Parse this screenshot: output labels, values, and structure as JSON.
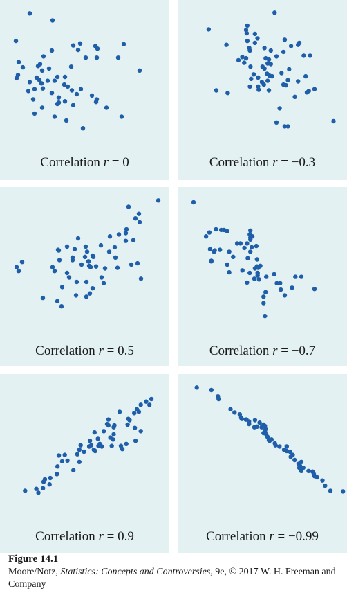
{
  "chart_data": [
    {
      "type": "scatter",
      "label_prefix": "Correlation",
      "label_var": "r",
      "label_value": "0",
      "xlim": [
        0,
        220
      ],
      "ylim": [
        0,
        205
      ],
      "points": [
        [
          21,
          10
        ],
        [
          54,
          21
        ],
        [
          1,
          53
        ],
        [
          5,
          86
        ],
        [
          4,
          106
        ],
        [
          2,
          111
        ],
        [
          53,
          68
        ],
        [
          21,
          117
        ],
        [
          91,
          67
        ],
        [
          84,
          60
        ],
        [
          94,
          57
        ],
        [
          119,
          65
        ],
        [
          116,
          61
        ],
        [
          102,
          79
        ],
        [
          41,
          77
        ],
        [
          36,
          89
        ],
        [
          33,
          92
        ],
        [
          39,
          99
        ],
        [
          49,
          96
        ],
        [
          47,
          115
        ],
        [
          35,
          114
        ],
        [
          38,
          119
        ],
        [
          40,
          127
        ],
        [
          57,
          115
        ],
        [
          61,
          109
        ],
        [
          72,
          109
        ],
        [
          71,
          121
        ],
        [
          76,
          124
        ],
        [
          82,
          130
        ],
        [
          89,
          136
        ],
        [
          95,
          128
        ],
        [
          111,
          138
        ],
        [
          84,
          153
        ],
        [
          72,
          147
        ],
        [
          63,
          141
        ],
        [
          53,
          134
        ],
        [
          61,
          151
        ],
        [
          28,
          128
        ],
        [
          26,
          144
        ],
        [
          19,
          131
        ],
        [
          39,
          157
        ],
        [
          28,
          166
        ],
        [
          63,
          149
        ],
        [
          57,
          171
        ],
        [
          74,
          177
        ],
        [
          118,
          144
        ],
        [
          118,
          79
        ],
        [
          149,
          79
        ],
        [
          157,
          58
        ],
        [
          180,
          99
        ],
        [
          117,
          148
        ],
        [
          98,
          189
        ],
        [
          154,
          171
        ],
        [
          11,
          94
        ],
        [
          31,
          110
        ],
        [
          132,
          157
        ],
        [
          81,
          93
        ]
      ]
    },
    {
      "type": "scatter",
      "label_prefix": "Correlation",
      "label_var": "r",
      "label_value": "−0.3",
      "xlim": [
        0,
        240
      ],
      "ylim": [
        0,
        205
      ],
      "points": [
        [
          25,
          35
        ],
        [
          129,
          9
        ],
        [
          53,
          59
        ],
        [
          86,
          29
        ],
        [
          84,
          36
        ],
        [
          85,
          41
        ],
        [
          98,
          42
        ],
        [
          86,
          53
        ],
        [
          98,
          56
        ],
        [
          102,
          49
        ],
        [
          89,
          64
        ],
        [
          90,
          68
        ],
        [
          84,
          80
        ],
        [
          78,
          78
        ],
        [
          81,
          87
        ],
        [
          72,
          83
        ],
        [
          91,
          93
        ],
        [
          96,
          105
        ],
        [
          110,
          93
        ],
        [
          113,
          96
        ],
        [
          118,
          88
        ],
        [
          115,
          80
        ],
        [
          120,
          82
        ],
        [
          123,
          89
        ],
        [
          117,
          104
        ],
        [
          123,
          68
        ],
        [
          113,
          64
        ],
        [
          132,
          77
        ],
        [
          145,
          51
        ],
        [
          155,
          61
        ],
        [
          166,
          59
        ],
        [
          168,
          56
        ],
        [
          175,
          76
        ],
        [
          152,
          97
        ],
        [
          140,
          103
        ],
        [
          125,
          108
        ],
        [
          118,
          115
        ],
        [
          109,
          117
        ],
        [
          112,
          121
        ],
        [
          92,
          112
        ],
        [
          90,
          124
        ],
        [
          104,
          129
        ],
        [
          120,
          130
        ],
        [
          143,
          121
        ],
        [
          147,
          122
        ],
        [
          150,
          114
        ],
        [
          166,
          116
        ],
        [
          178,
          108
        ],
        [
          180,
          133
        ],
        [
          183,
          131
        ],
        [
          161,
          140
        ],
        [
          137,
          158
        ],
        [
          185,
          76
        ],
        [
          192,
          128
        ],
        [
          37,
          130
        ],
        [
          55,
          134
        ],
        [
          103,
          110
        ],
        [
          121,
          107
        ],
        [
          132,
          180
        ],
        [
          145,
          186
        ],
        [
          150,
          186
        ],
        [
          222,
          178
        ],
        [
          103,
          124
        ],
        [
          143,
          70
        ]
      ]
    },
    {
      "type": "scatter",
      "label_prefix": "Correlation",
      "label_var": "r",
      "label_value": "0.5",
      "xlim": [
        0,
        220
      ],
      "ylim": [
        0,
        205
      ],
      "points": [
        [
          207,
          10
        ],
        [
          164,
          20
        ],
        [
          179,
          31
        ],
        [
          174,
          38
        ],
        [
          180,
          44
        ],
        [
          161,
          55
        ],
        [
          160,
          61
        ],
        [
          171,
          72
        ],
        [
          150,
          63
        ],
        [
          124,
          80
        ],
        [
          102,
          82
        ],
        [
          104,
          90
        ],
        [
          136,
          90
        ],
        [
          144,
          83
        ],
        [
          137,
          66
        ],
        [
          91,
          69
        ],
        [
          62,
          87
        ],
        [
          63,
          88
        ],
        [
          86,
          86
        ],
        [
          83,
          99
        ],
        [
          101,
          98
        ],
        [
          112,
          96
        ],
        [
          106,
          105
        ],
        [
          107,
          112
        ],
        [
          109,
          114
        ],
        [
          117,
          113
        ],
        [
          64,
          103
        ],
        [
          54,
          114
        ],
        [
          57,
          120
        ],
        [
          75,
          123
        ],
        [
          78,
          130
        ],
        [
          89,
          137
        ],
        [
          103,
          137
        ],
        [
          145,
          99
        ],
        [
          130,
          116
        ],
        [
          148,
          115
        ],
        [
          112,
          147
        ],
        [
          108,
          155
        ],
        [
          88,
          158
        ],
        [
          103,
          160
        ],
        [
          125,
          130
        ],
        [
          128,
          139
        ],
        [
          177,
          108
        ],
        [
          182,
          132
        ],
        [
          168,
          110
        ],
        [
          160,
          73
        ],
        [
          10,
          106
        ],
        [
          2,
          114
        ],
        [
          5,
          120
        ],
        [
          61,
          167
        ],
        [
          40,
          162
        ],
        [
          67,
          175
        ],
        [
          68,
          145
        ],
        [
          83,
          103
        ],
        [
          75,
          82
        ],
        [
          113,
          98
        ],
        [
          96,
          110
        ]
      ]
    },
    {
      "type": "scatter",
      "label_prefix": "Correlation",
      "label_var": "r",
      "label_value": "−0.7",
      "xlim": [
        0,
        230
      ],
      "ylim": [
        0,
        205
      ],
      "points": [
        [
          1,
          13
        ],
        [
          35,
          55
        ],
        [
          43,
          56
        ],
        [
          47,
          56
        ],
        [
          52,
          58
        ],
        [
          25,
          60
        ],
        [
          20,
          66
        ],
        [
          87,
          57
        ],
        [
          86,
          63
        ],
        [
          87,
          68
        ],
        [
          87,
          71
        ],
        [
          90,
          66
        ],
        [
          67,
          77
        ],
        [
          72,
          77
        ],
        [
          82,
          77
        ],
        [
          78,
          84
        ],
        [
          41,
          87
        ],
        [
          32,
          90
        ],
        [
          26,
          86
        ],
        [
          33,
          88
        ],
        [
          55,
          90
        ],
        [
          61,
          98
        ],
        [
          89,
          83
        ],
        [
          96,
          81
        ],
        [
          87,
          90
        ],
        [
          83,
          100
        ],
        [
          97,
          102
        ],
        [
          28,
          104
        ],
        [
          28,
          105
        ],
        [
          52,
          110
        ],
        [
          55,
          122
        ],
        [
          94,
          116
        ],
        [
          99,
          115
        ],
        [
          102,
          112
        ],
        [
          98,
          127
        ],
        [
          86,
          123
        ],
        [
          93,
          132
        ],
        [
          82,
          138
        ],
        [
          100,
          133
        ],
        [
          111,
          129
        ],
        [
          123,
          125
        ],
        [
          127,
          139
        ],
        [
          132,
          139
        ],
        [
          107,
          160
        ],
        [
          107,
          170
        ],
        [
          110,
          153
        ],
        [
          133,
          149
        ],
        [
          150,
          146
        ],
        [
          155,
          129
        ],
        [
          164,
          129
        ],
        [
          139,
          158
        ],
        [
          98,
          123
        ],
        [
          184,
          148
        ],
        [
          109,
          190
        ],
        [
          75,
          119
        ],
        [
          97,
          113
        ]
      ]
    },
    {
      "type": "scatter",
      "label_prefix": "Correlation",
      "label_var": "r",
      "label_value": "0.9",
      "xlim": [
        0,
        230
      ],
      "ylim": [
        0,
        205
      ],
      "points": [
        [
          206,
          28
        ],
        [
          198,
          32
        ],
        [
          203,
          37
        ],
        [
          190,
          37
        ],
        [
          184,
          44
        ],
        [
          187,
          48
        ],
        [
          180,
          50
        ],
        [
          171,
          59
        ],
        [
          173,
          61
        ],
        [
          170,
          68
        ],
        [
          158,
          48
        ],
        [
          141,
          60
        ],
        [
          139,
          67
        ],
        [
          141,
          69
        ],
        [
          150,
          69
        ],
        [
          149,
          72
        ],
        [
          190,
          78
        ],
        [
          181,
          73
        ],
        [
          182,
          93
        ],
        [
          168,
          98
        ],
        [
          162,
          106
        ],
        [
          160,
          101
        ],
        [
          146,
          101
        ],
        [
          148,
          91
        ],
        [
          134,
          78
        ],
        [
          120,
          80
        ],
        [
          125,
          90
        ],
        [
          113,
          93
        ],
        [
          112,
          102
        ],
        [
          126,
          101
        ],
        [
          131,
          102
        ],
        [
          121,
          109
        ],
        [
          97,
          107
        ],
        [
          94,
          114
        ],
        [
          75,
          115
        ],
        [
          66,
          116
        ],
        [
          71,
          125
        ],
        [
          64,
          133
        ],
        [
          63,
          145
        ],
        [
          53,
          151
        ],
        [
          45,
          153
        ],
        [
          43,
          157
        ],
        [
          42,
          167
        ],
        [
          32,
          168
        ],
        [
          15,
          171
        ],
        [
          35,
          174
        ],
        [
          52,
          161
        ],
        [
          79,
          124
        ],
        [
          97,
          126
        ],
        [
          115,
          100
        ],
        [
          149,
          83
        ],
        [
          119,
          107
        ],
        [
          104,
          110
        ],
        [
          88,
          139
        ],
        [
          99,
          100
        ],
        [
          128,
          98
        ],
        [
          144,
          88
        ]
      ]
    },
    {
      "type": "scatter",
      "label_prefix": "Correlation",
      "label_var": "r",
      "label_value": "−0.99",
      "xlim": [
        0,
        230
      ],
      "ylim": [
        0,
        205
      ],
      "points": [
        [
          6,
          10
        ],
        [
          28,
          14
        ],
        [
          38,
          24
        ],
        [
          39,
          28
        ],
        [
          57,
          44
        ],
        [
          63,
          49
        ],
        [
          71,
          52
        ],
        [
          73,
          57
        ],
        [
          74,
          59
        ],
        [
          80,
          60
        ],
        [
          85,
          63
        ],
        [
          81,
          60
        ],
        [
          94,
          61
        ],
        [
          101,
          65
        ],
        [
          107,
          68
        ],
        [
          109,
          70
        ],
        [
          110,
          75
        ],
        [
          109,
          78
        ],
        [
          111,
          83
        ],
        [
          113,
          87
        ],
        [
          115,
          92
        ],
        [
          116,
          93
        ],
        [
          124,
          97
        ],
        [
          131,
          102
        ],
        [
          138,
          107
        ],
        [
          142,
          109
        ],
        [
          147,
          110
        ],
        [
          151,
          115
        ],
        [
          148,
          118
        ],
        [
          154,
          123
        ],
        [
          160,
          129
        ],
        [
          162,
          132
        ],
        [
          161,
          135
        ],
        [
          164,
          140
        ],
        [
          167,
          135
        ],
        [
          181,
          141
        ],
        [
          183,
          145
        ],
        [
          184,
          148
        ],
        [
          188,
          150
        ],
        [
          196,
          155
        ],
        [
          200,
          163
        ],
        [
          208,
          171
        ],
        [
          227,
          172
        ],
        [
          93,
          72
        ],
        [
          97,
          71
        ],
        [
          107,
          81
        ],
        [
          119,
          91
        ],
        [
          125,
          100
        ],
        [
          104,
          72
        ],
        [
          85,
          67
        ],
        [
          142,
          102
        ],
        [
          164,
          126
        ],
        [
          175,
          140
        ]
      ]
    }
  ],
  "figure": {
    "number": "Figure 14.1",
    "credit_before": "Moore/Notz, ",
    "credit_title": "Statistics: Concepts and Controversies",
    "credit_after": ", 9e, © 2017 W. H. Freeman and Company"
  },
  "colors": {
    "panel_bg": "#e3f1f3",
    "point": "#1f5ea8"
  }
}
